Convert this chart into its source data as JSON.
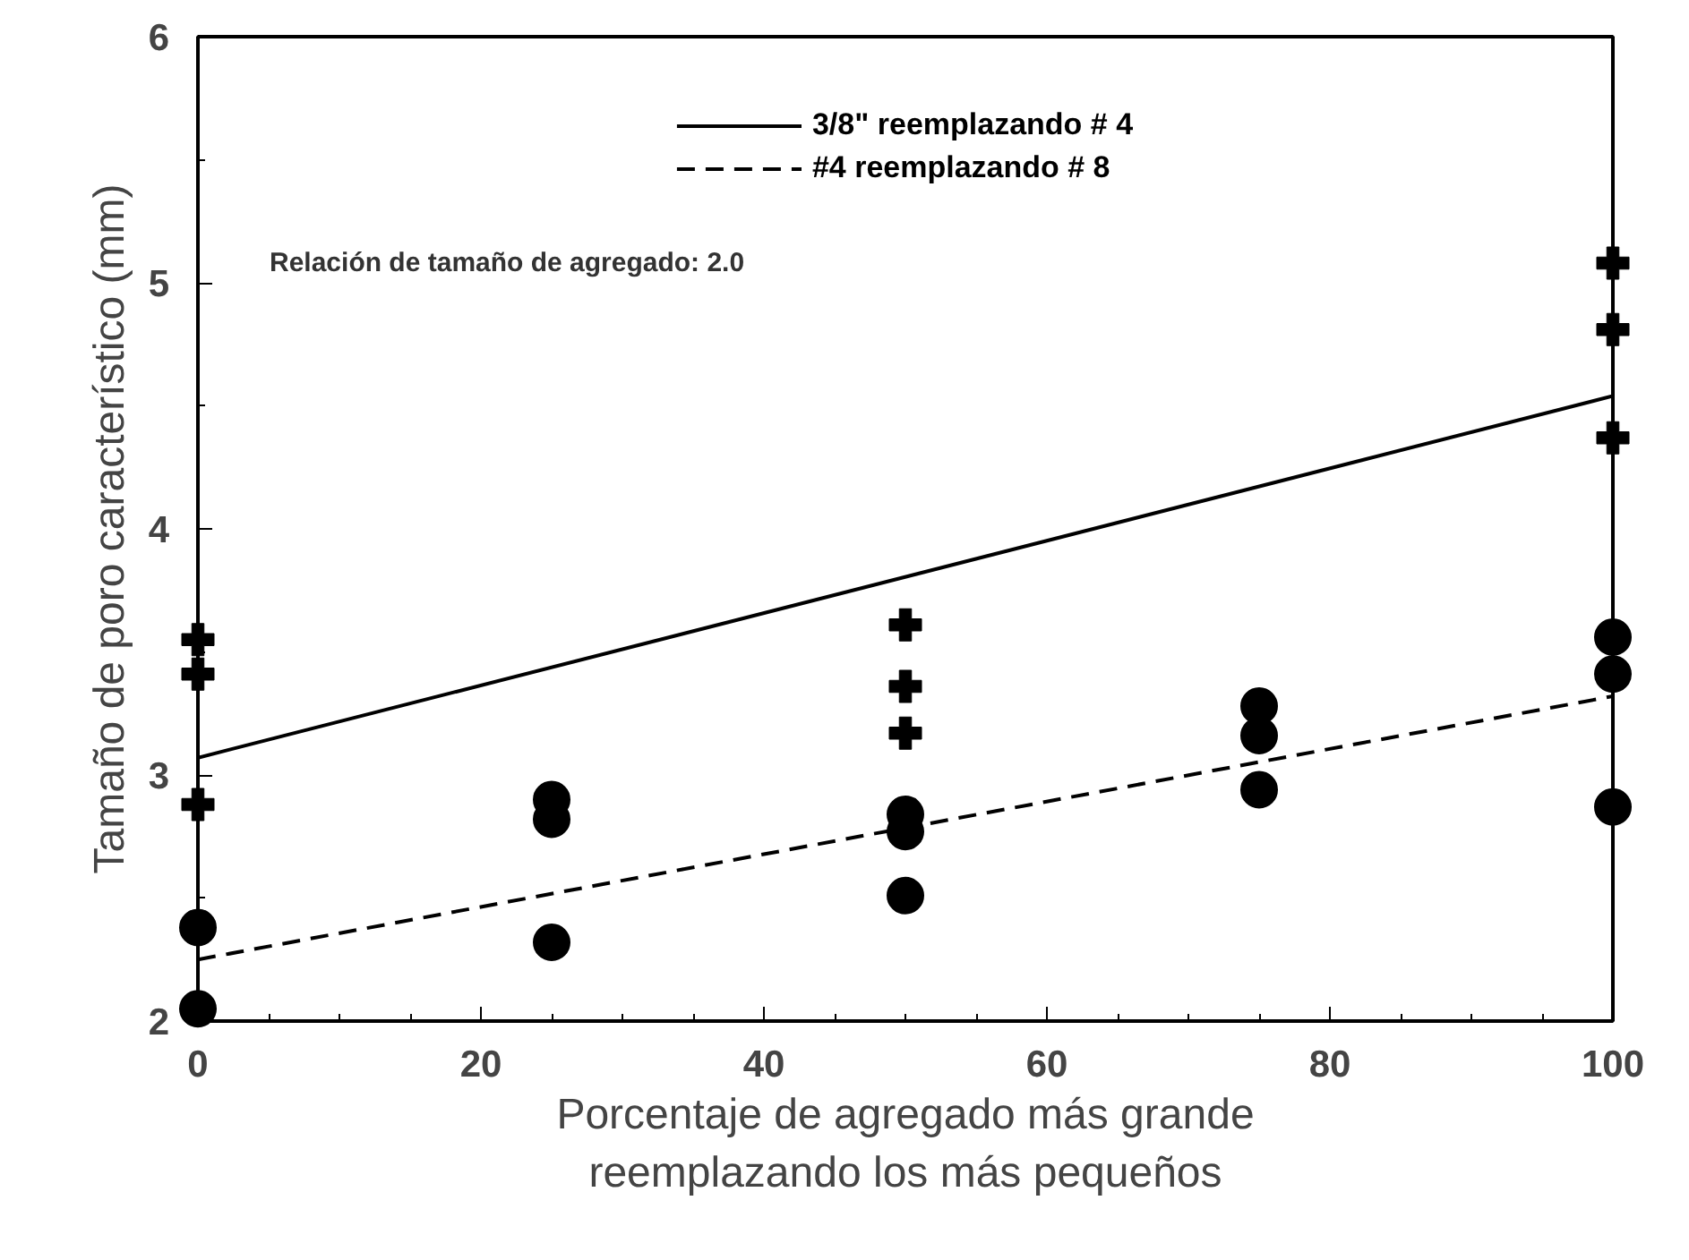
{
  "chart_data": {
    "type": "scatter",
    "xlabel": "Porcentaje de agregado más grande\nreemplazando los más pequeños",
    "ylabel": "Tamaño de poro característico (mm)",
    "xlim": [
      0,
      100
    ],
    "ylim": [
      2,
      6
    ],
    "xticks": [
      0,
      20,
      40,
      60,
      80,
      100
    ],
    "yticks": [
      2,
      3,
      4,
      5,
      6
    ],
    "grid": false,
    "legend": "top",
    "annotations": [
      "Relación de tamaño de agregado: 2.0"
    ],
    "series": [
      {
        "marker": "cross",
        "color": "#000000",
        "x": [
          0,
          0,
          0,
          50,
          50,
          50,
          100,
          100,
          100
        ],
        "values": [
          3.55,
          3.41,
          2.88,
          3.61,
          3.36,
          3.17,
          5.08,
          4.81,
          4.37
        ]
      },
      {
        "marker": "circle",
        "color": "#000000",
        "x": [
          0,
          0,
          25,
          25,
          25,
          50,
          50,
          50,
          75,
          75,
          75,
          100,
          100,
          100
        ],
        "values": [
          2.38,
          2.05,
          2.9,
          2.82,
          2.32,
          2.84,
          2.77,
          2.51,
          3.28,
          3.16,
          2.94,
          3.56,
          3.41,
          2.87
        ]
      },
      {
        "type": "line",
        "name": "3/8\" reemplazando # 4",
        "line_style": "solid",
        "color": "#000000",
        "x": [
          0,
          100
        ],
        "values": [
          3.07,
          4.54
        ]
      },
      {
        "type": "line",
        "name": "#4 reemplazando # 8",
        "line_style": "dashed",
        "color": "#000000",
        "x": [
          0,
          100
        ],
        "values": [
          2.25,
          3.32
        ]
      }
    ]
  }
}
